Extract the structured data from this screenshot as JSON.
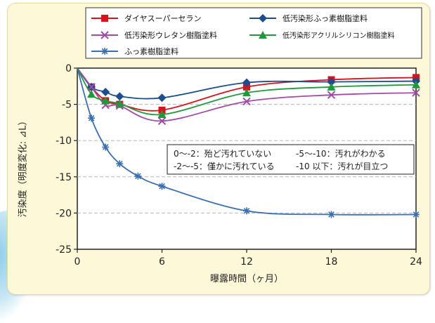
{
  "chart_data": {
    "type": "line",
    "title": "",
    "xlabel": "曝露時間（ヶ月）",
    "ylabel": "汚染度（明度変化: ⊿L）",
    "xlim": [
      0,
      24
    ],
    "ylim": [
      -25,
      0
    ],
    "xticks": [
      "0",
      "6",
      "12",
      "18",
      "24"
    ],
    "xtick_values": [
      0,
      6,
      12,
      18,
      24
    ],
    "yticks": [
      "0",
      "-5",
      "-10",
      "-15",
      "-20",
      "-25"
    ],
    "ytick_values": [
      0,
      -5,
      -10,
      -15,
      -20,
      -25
    ],
    "grid": true,
    "series": [
      {
        "name": "ダイヤスーパーセラン",
        "color": "#d7141b",
        "marker": "square",
        "x": [
          1,
          2,
          3,
          6,
          12,
          18,
          24
        ],
        "y": [
          -2.6,
          -4.5,
          -5.0,
          -5.8,
          -2.6,
          -1.6,
          -1.3
        ]
      },
      {
        "name": "低汚染形ふっ素樹脂塗料",
        "color": "#1b4d8f",
        "marker": "diamond",
        "x": [
          1,
          2,
          3,
          6,
          12,
          18,
          24
        ],
        "y": [
          -2.6,
          -3.3,
          -3.9,
          -4.1,
          -2.0,
          -1.9,
          -1.8
        ]
      },
      {
        "name": "低汚染形ウレタン樹脂塗料",
        "color": "#a34aa8",
        "marker": "x",
        "x": [
          1,
          2,
          3,
          6,
          12,
          18,
          24
        ],
        "y": [
          -2.6,
          -5.1,
          -5.2,
          -7.3,
          -4.6,
          -3.7,
          -3.4
        ]
      },
      {
        "name": "低汚染形アクリルシリコン樹脂塗料",
        "color": "#1f9a3b",
        "marker": "triangle",
        "x": [
          1,
          2,
          3,
          6,
          12,
          18,
          24
        ],
        "y": [
          -3.6,
          -4.5,
          -4.9,
          -6.4,
          -3.4,
          -2.6,
          -2.3
        ]
      },
      {
        "name": "ふっ素樹脂塗料",
        "color": "#3a6fb4",
        "marker": "star",
        "x": [
          1,
          2,
          3,
          4.3,
          6,
          12,
          18,
          24
        ],
        "y": [
          -6.9,
          -10.9,
          -13.2,
          -14.9,
          -16.3,
          -19.7,
          -20.2,
          -20.2
        ]
      }
    ],
    "annotation": [
      "0〜-2：殆ど汚れていない",
      "-5〜-10：汚れがわかる",
      "-2〜-5：僅かに汚れている",
      "-10 以下：汚れが目立つ"
    ]
  }
}
